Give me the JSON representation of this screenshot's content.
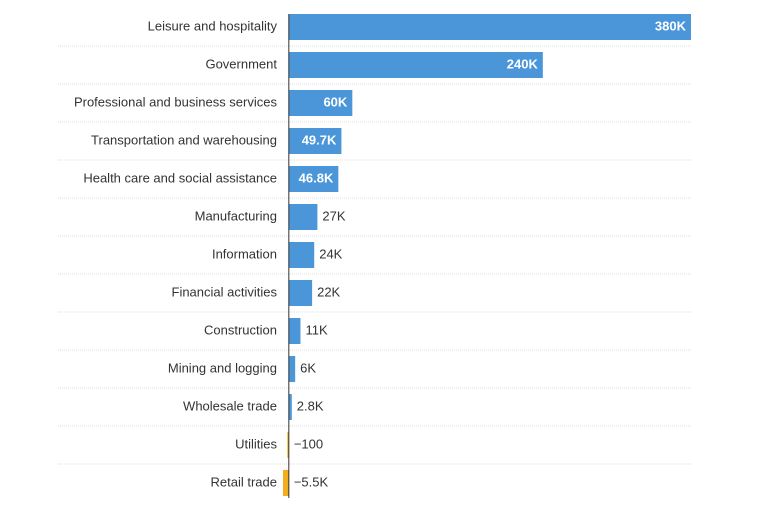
{
  "chart_data": {
    "type": "bar",
    "orientation": "horizontal",
    "title": "",
    "xlabel": "",
    "ylabel": "",
    "grid": false,
    "categories": [
      "Leisure and hospitality",
      "Government",
      "Professional and business services",
      "Transportation and warehousing",
      "Health care and social assistance",
      "Manufacturing",
      "Information",
      "Financial activities",
      "Construction",
      "Mining and logging",
      "Wholesale trade",
      "Utilities",
      "Retail trade"
    ],
    "values": [
      380000,
      240000,
      60000,
      49700,
      46800,
      27000,
      24000,
      22000,
      11000,
      6000,
      2800,
      -100,
      -5500
    ],
    "data_labels": [
      "380K",
      "240K",
      "60K",
      "49.7K",
      "46.8K",
      "27K",
      "24K",
      "22K",
      "11K",
      "6K",
      "2.8K",
      "−100",
      "−5.5K"
    ],
    "xlim": [
      -5500,
      380000
    ],
    "colors": {
      "positive": "#4a96d9",
      "negative": "#f5ae1b",
      "inside_label": "#ffffff",
      "outside_label": "#333333",
      "separator": "#dddddd",
      "axis": "#333333"
    }
  }
}
